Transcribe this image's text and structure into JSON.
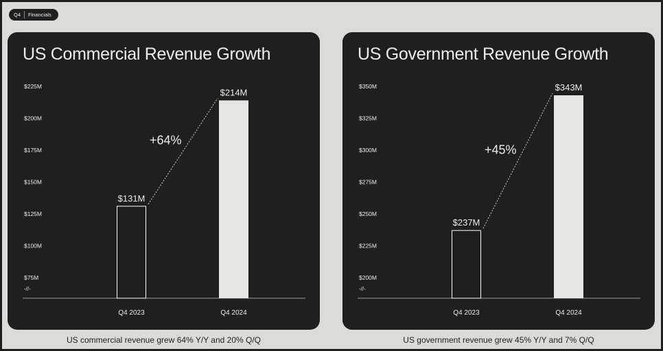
{
  "badge": {
    "section": "Q4",
    "label": "Financials"
  },
  "chart_data": [
    {
      "type": "bar",
      "title": "US Commercial Revenue Growth",
      "categories": [
        "Q4 2023",
        "Q4 2024"
      ],
      "values": [
        131,
        214
      ],
      "value_labels": [
        "$131M",
        "$214M"
      ],
      "growth_label": "+64%",
      "yticks": [
        "$225M",
        "$200M",
        "$175M",
        "$150M",
        "$125M",
        "$100M",
        "$75M"
      ],
      "ylim": [
        75,
        225
      ],
      "axis_break": "-//-",
      "caption": "US commercial revenue grew 64% Y/Y and 20% Q/Q"
    },
    {
      "type": "bar",
      "title": "US Government Revenue Growth",
      "categories": [
        "Q4 2023",
        "Q4 2024"
      ],
      "values": [
        237,
        343
      ],
      "value_labels": [
        "$237M",
        "$343M"
      ],
      "growth_label": "+45%",
      "yticks": [
        "$350M",
        "$325M",
        "$300M",
        "$275M",
        "$250M",
        "$225M",
        "$200M"
      ],
      "ylim": [
        200,
        350
      ],
      "axis_break": "-//-",
      "caption": "US government revenue grew 45% Y/Y and 7% Q/Q"
    }
  ],
  "colors": {
    "background": "#dcdbd8",
    "card": "#1e2020",
    "text": "#ececea",
    "bar_filled": "#e8e6e3",
    "bar_outline": "#ffffff"
  }
}
